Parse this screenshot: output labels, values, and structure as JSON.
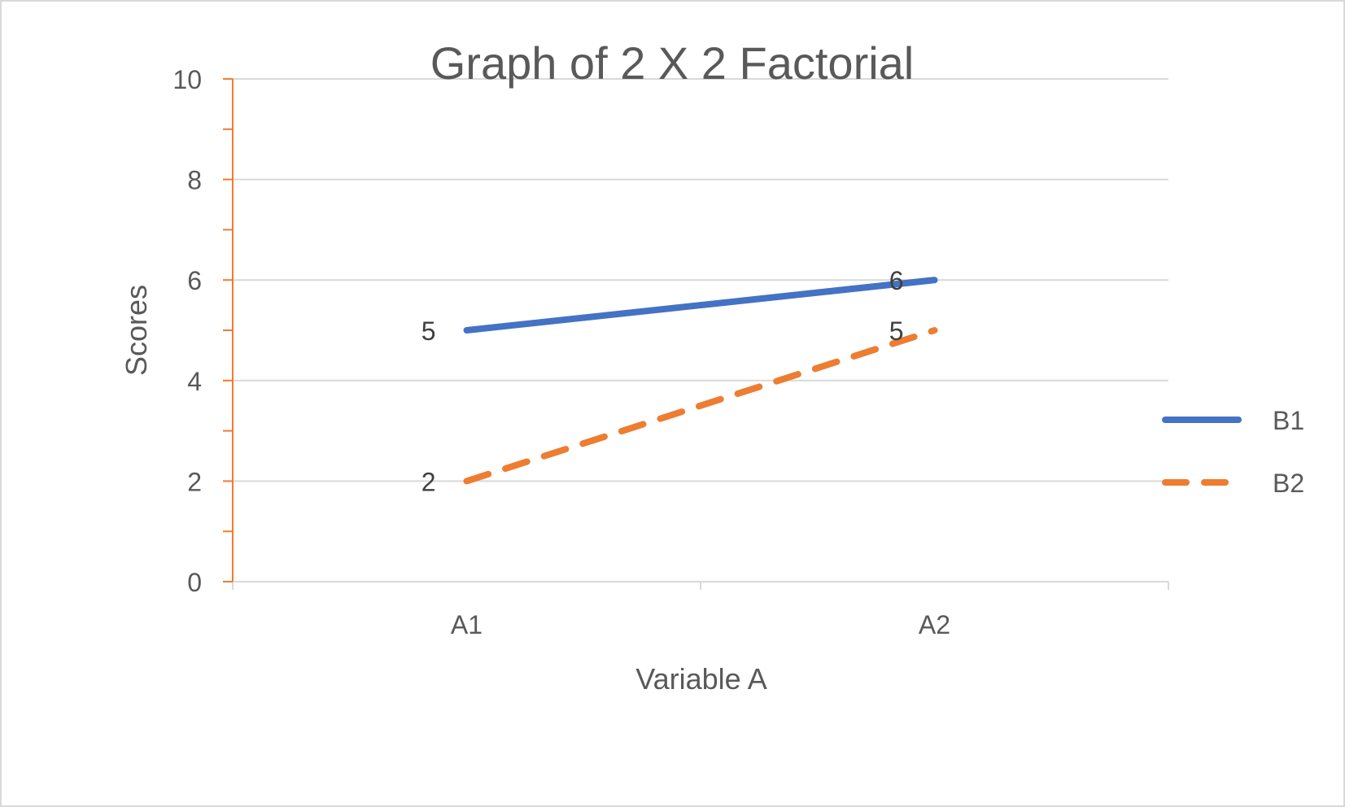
{
  "chart_data": {
    "type": "line",
    "title": "Graph of 2 X 2 Factorial",
    "xlabel": "Variable A",
    "ylabel": "Scores",
    "categories": [
      "A1",
      "A2"
    ],
    "ylim": [
      0,
      10
    ],
    "ymajor_ticks": [
      0,
      2,
      4,
      6,
      8,
      10
    ],
    "series": [
      {
        "name": "B1",
        "values": [
          5,
          6
        ],
        "color": "#4472c4",
        "style": "solid",
        "labels": [
          "5",
          "6"
        ]
      },
      {
        "name": "B2",
        "values": [
          2,
          5
        ],
        "color": "#ed7d31",
        "style": "dashed",
        "labels": [
          "2",
          "5"
        ]
      }
    ],
    "y_axis_color": "#ed7d31",
    "grid": true,
    "legend_position": "right"
  }
}
